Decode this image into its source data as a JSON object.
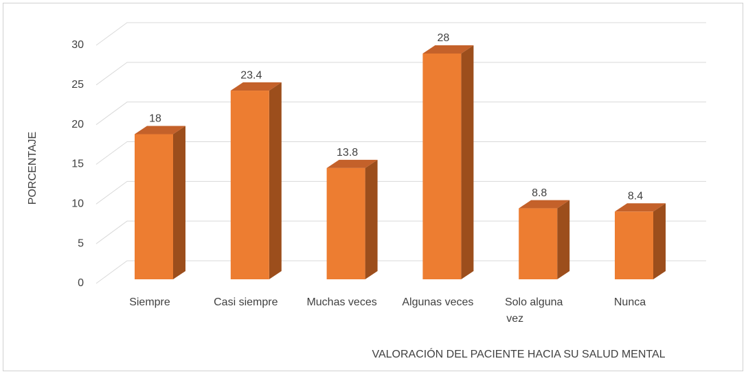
{
  "chart_data": {
    "type": "bar3d",
    "categories": [
      "Siempre",
      "Casi siempre",
      "Muchas veces",
      "Algunas veces",
      "Solo alguna vez",
      "Nunca"
    ],
    "values": [
      18,
      23.4,
      13.8,
      28,
      8.8,
      8.4
    ],
    "color": "#ed7d31",
    "side_color": "#9c4e1c",
    "top_color": "#c4612a",
    "ylim": [
      0,
      30
    ],
    "yticks": [
      0,
      5,
      10,
      15,
      20,
      25,
      30
    ],
    "grid": true,
    "xlabel": "VALORACIÓN DEL PACIENTE HACIA SU SALUD MENTAL",
    "ylabel": "PORCENTAJE"
  }
}
